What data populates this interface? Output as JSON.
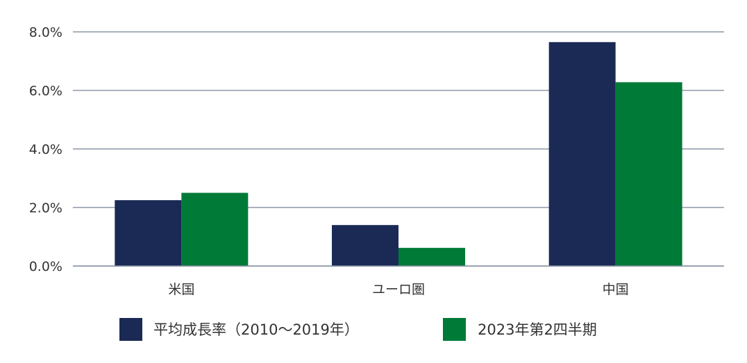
{
  "chart_data": {
    "type": "bar",
    "categories": [
      "米国",
      "ユーロ圏",
      "中国"
    ],
    "series": [
      {
        "name": "平均成長率（2010～2019年）",
        "values": [
          2.25,
          1.4,
          7.65
        ],
        "color": "#1b2a55"
      },
      {
        "name": "2023年第2四半期",
        "values": [
          2.5,
          0.62,
          6.28
        ],
        "color": "#007a37"
      }
    ],
    "y_ticks": [
      "0.0%",
      "2.0%",
      "4.0%",
      "6.0%",
      "8.0%"
    ],
    "ylim": [
      0,
      8
    ],
    "grid": true,
    "legend_position": "bottom"
  }
}
